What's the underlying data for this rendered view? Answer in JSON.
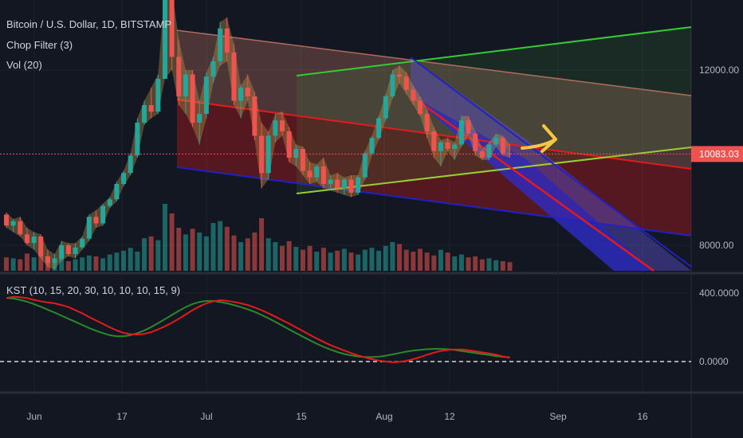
{
  "header": {
    "symbol": "Bitcoin / U.S. Dollar, 1D, BITSTAMP",
    "indicator1": "Chop Filter (3)",
    "indicator2": "Vol (20)"
  },
  "kst_panel": {
    "label": "KST (10, 15, 20, 30, 10, 10, 10, 15, 9)"
  },
  "colors": {
    "background": "#131722",
    "up": "#26a69a",
    "down": "#ef5350",
    "channel_green": "#33cc33",
    "channel_red": "#e31b1b",
    "channel_blue": "#2121c8",
    "kst_line": "#e31b1b",
    "kst_signal": "#2a8a2a",
    "arrow": "#f5c842",
    "price_tag": "#ef5350"
  },
  "chart_data": {
    "type": "candlestick",
    "main": {
      "y_ticks": [
        "12000.00",
        "8000.00"
      ],
      "last_price": "10083.03",
      "x_ticks": [
        "Jun",
        "17",
        "Jul",
        "15",
        "Aug",
        "12",
        "Sep",
        "16"
      ],
      "candles": [
        [
          8700,
          8750,
          8400,
          8450
        ],
        [
          8450,
          8600,
          8300,
          8550
        ],
        [
          8550,
          8650,
          8200,
          8250
        ],
        [
          8250,
          8400,
          8000,
          8050
        ],
        [
          8050,
          8300,
          7900,
          8200
        ],
        [
          8200,
          8250,
          7700,
          7750
        ],
        [
          7750,
          7900,
          7500,
          7600
        ],
        [
          7600,
          7800,
          7450,
          7700
        ],
        [
          7700,
          8100,
          7650,
          8000
        ],
        [
          8000,
          8050,
          7750,
          7800
        ],
        [
          7800,
          8050,
          7700,
          7950
        ],
        [
          7950,
          8200,
          7900,
          8150
        ],
        [
          8150,
          8700,
          8100,
          8650
        ],
        [
          8650,
          8800,
          8400,
          8500
        ],
        [
          8500,
          8950,
          8450,
          8900
        ],
        [
          8900,
          9100,
          8850,
          9050
        ],
        [
          9050,
          9450,
          9000,
          9400
        ],
        [
          9400,
          9700,
          9350,
          9650
        ],
        [
          9650,
          10100,
          9600,
          10050
        ],
        [
          10050,
          10900,
          10000,
          10800
        ],
        [
          10800,
          11300,
          10750,
          11200
        ],
        [
          11200,
          11600,
          10900,
          11050
        ],
        [
          11050,
          11900,
          11000,
          11800
        ],
        [
          11800,
          13900,
          11800,
          13800
        ],
        [
          13800,
          13850,
          12000,
          12300
        ],
        [
          12300,
          12700,
          11200,
          11400
        ],
        [
          11400,
          12000,
          11000,
          11900
        ],
        [
          11900,
          12000,
          10700,
          10800
        ],
        [
          10800,
          11300,
          10300,
          11000
        ],
        [
          11000,
          11950,
          10900,
          11850
        ],
        [
          11850,
          12300,
          11700,
          12200
        ],
        [
          12200,
          13100,
          12100,
          12950
        ],
        [
          12950,
          13200,
          12200,
          12400
        ],
        [
          12400,
          12600,
          11200,
          11300
        ],
        [
          11300,
          11650,
          10900,
          11600
        ],
        [
          11600,
          11900,
          11300,
          11400
        ],
        [
          11400,
          11500,
          10400,
          10500
        ],
        [
          10500,
          10800,
          9300,
          9650
        ],
        [
          9650,
          10600,
          9500,
          10500
        ],
        [
          10500,
          11000,
          10350,
          10850
        ],
        [
          10850,
          11050,
          10500,
          10600
        ],
        [
          10600,
          10700,
          9900,
          10000
        ],
        [
          10000,
          10300,
          9800,
          10200
        ],
        [
          10200,
          10250,
          9600,
          9700
        ],
        [
          9700,
          9900,
          9400,
          9550
        ],
        [
          9550,
          9850,
          9450,
          9800
        ],
        [
          9800,
          10000,
          9300,
          9400
        ],
        [
          9400,
          9600,
          9250,
          9500
        ],
        [
          9500,
          9650,
          9200,
          9300
        ],
        [
          9300,
          9550,
          9150,
          9500
        ],
        [
          9500,
          9600,
          9100,
          9200
        ],
        [
          9200,
          9600,
          9150,
          9550
        ],
        [
          9550,
          10150,
          9500,
          10100
        ],
        [
          10100,
          10500,
          10050,
          10450
        ],
        [
          10450,
          10950,
          10400,
          10900
        ],
        [
          10900,
          11450,
          10850,
          11400
        ],
        [
          11400,
          12000,
          11350,
          11900
        ],
        [
          11900,
          12100,
          11700,
          11850
        ],
        [
          11850,
          11950,
          11450,
          11550
        ],
        [
          11550,
          11650,
          11200,
          11300
        ],
        [
          11300,
          11400,
          10950,
          11000
        ],
        [
          11000,
          11100,
          10450,
          10600
        ],
        [
          10600,
          10700,
          10000,
          10150
        ],
        [
          10150,
          10400,
          9800,
          10350
        ],
        [
          10350,
          10450,
          10150,
          10200
        ],
        [
          10200,
          10350,
          9950,
          10300
        ],
        [
          10300,
          10950,
          10250,
          10850
        ],
        [
          10850,
          10950,
          10500,
          10550
        ],
        [
          10550,
          10600,
          10050,
          10150
        ],
        [
          10150,
          10200,
          9950,
          10000
        ],
        [
          10000,
          10350,
          9950,
          10300
        ],
        [
          10300,
          10550,
          10250,
          10450
        ],
        [
          10450,
          10500,
          10050,
          10100
        ],
        [
          10100,
          10300,
          10000,
          10083
        ]
      ],
      "volume": [
        14,
        13,
        12,
        18,
        14,
        17,
        13,
        12,
        15,
        10,
        12,
        14,
        16,
        15,
        13,
        17,
        19,
        21,
        24,
        20,
        34,
        36,
        32,
        70,
        60,
        45,
        38,
        44,
        40,
        36,
        50,
        52,
        46,
        37,
        30,
        34,
        40,
        55,
        34,
        30,
        26,
        31,
        25,
        22,
        26,
        20,
        24,
        19,
        21,
        23,
        19,
        17,
        22,
        24,
        21,
        26,
        30,
        28,
        22,
        20,
        23,
        19,
        16,
        22,
        19,
        15,
        17,
        14,
        15,
        12,
        13,
        11,
        10,
        9
      ]
    },
    "kst": {
      "y_ticks": [
        "400.0000",
        "0.0000"
      ],
      "kst": [
        370,
        378,
        376,
        370,
        360,
        352,
        345,
        340,
        330,
        318,
        300,
        282,
        260,
        240,
        220,
        200,
        182,
        168,
        160,
        158,
        162,
        172,
        188,
        206,
        226,
        250,
        275,
        300,
        322,
        340,
        352,
        358,
        355,
        348,
        340,
        330,
        316,
        300,
        282,
        262,
        242,
        222,
        200,
        178,
        156,
        135,
        115,
        96,
        80,
        64,
        50,
        36,
        24,
        14,
        6,
        0,
        -4,
        -2,
        4,
        14,
        26,
        40,
        52,
        62,
        68,
        70,
        70,
        66,
        60,
        54,
        48,
        40,
        30,
        22
      ],
      "signal": [
        372,
        368,
        360,
        350,
        336,
        320,
        303,
        286,
        268,
        250,
        232,
        214,
        196,
        180,
        166,
        154,
        148,
        148,
        154,
        166,
        182,
        202,
        224,
        248,
        272,
        296,
        318,
        336,
        348,
        354,
        354,
        348,
        340,
        330,
        318,
        305,
        290,
        272,
        253,
        232,
        210,
        188,
        166,
        145,
        124,
        104,
        86,
        70,
        56,
        44,
        36,
        30,
        26,
        26,
        28,
        34,
        42,
        50,
        58,
        64,
        68,
        72,
        74,
        74,
        72,
        68,
        62,
        56,
        50,
        44,
        38,
        32,
        28,
        24
      ],
      "zero_line": 0
    }
  }
}
